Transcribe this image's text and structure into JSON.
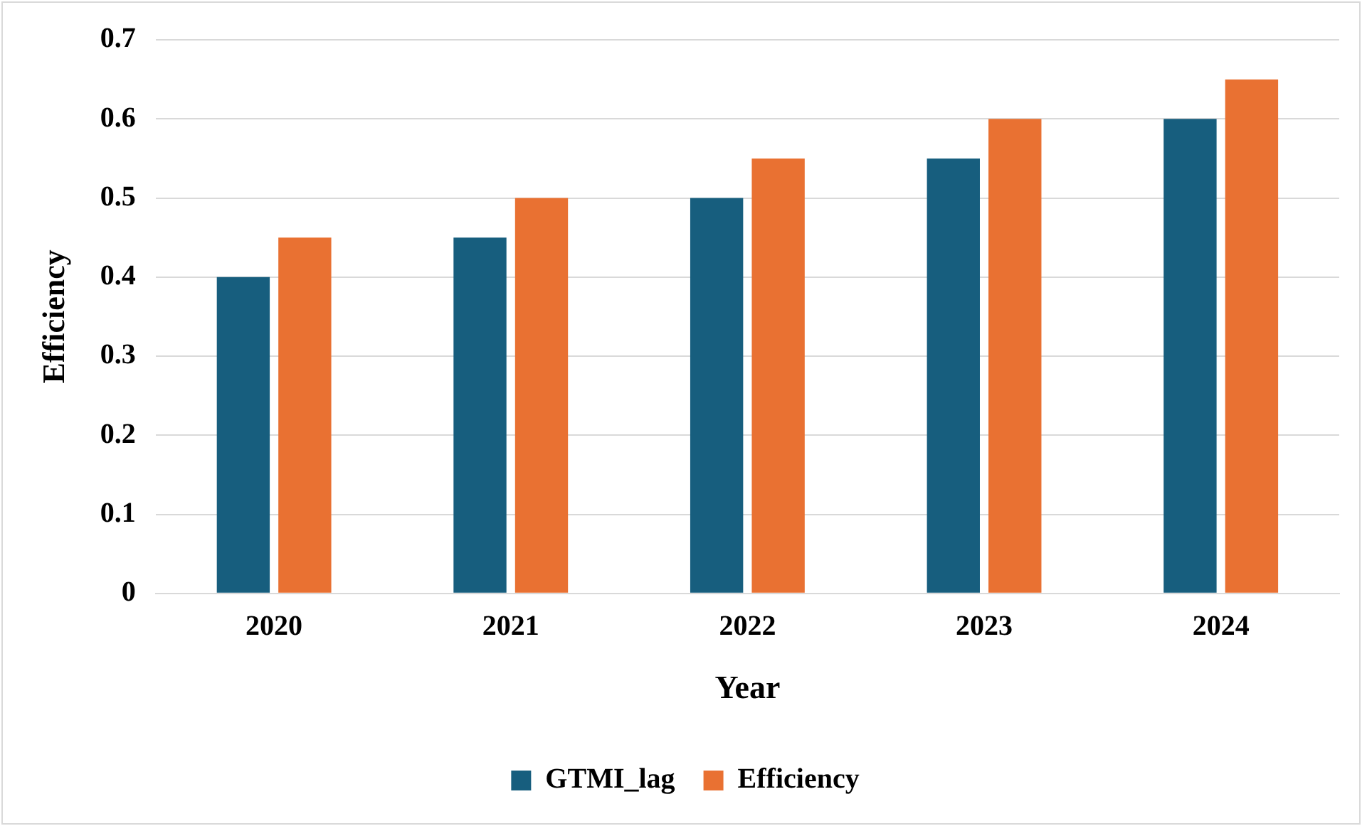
{
  "chart_data": {
    "type": "bar",
    "xlabel": "Year",
    "ylabel": "Efficiency",
    "categories": [
      "2020",
      "2021",
      "2022",
      "2023",
      "2024"
    ],
    "series": [
      {
        "name": "GTMI_lag",
        "color": "#175e7e",
        "values": [
          0.4,
          0.45,
          0.5,
          0.55,
          0.6
        ]
      },
      {
        "name": "Efficiency",
        "color": "#e97132",
        "values": [
          0.45,
          0.5,
          0.55,
          0.6,
          0.65
        ]
      }
    ],
    "ylim": [
      0,
      0.7
    ],
    "yticks": [
      0,
      0.1,
      0.2,
      0.3,
      0.4,
      0.5,
      0.6,
      0.7
    ],
    "grid": "y",
    "legend": "bottom"
  }
}
